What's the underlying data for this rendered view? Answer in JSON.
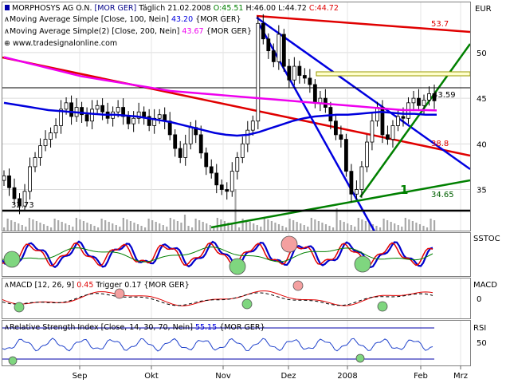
{
  "chart_data": {
    "type": "candlestick",
    "header": {
      "title": "MORPHOSYS AG O.N.",
      "market": "[MOR GER]",
      "interval": "Täglich",
      "date": "21.02.2008",
      "open_label": "O:45.51",
      "high_label": "H:46.00",
      "low_label": "L:44.72",
      "close_label": "C:44.72"
    },
    "legend": {
      "sma1": {
        "label": "Moving Average Simple [Close, 100, Nein]",
        "value": "43.20",
        "suffix": "{MOR GER}",
        "color": "#0000dd"
      },
      "sma2": {
        "label": "Moving Average Simple(2) [Close, 200, Nein]",
        "value": "43.67",
        "suffix": "{MOR GER}",
        "color": "#ee00ee"
      },
      "watermark": "www.tradesignalonline.com"
    },
    "currency": "EUR",
    "y_ticks": [
      "50",
      "45",
      "40",
      "35"
    ],
    "ylim": [
      30.5,
      55.5
    ],
    "x_ticks": [
      "Sep",
      "Okt",
      "Nov",
      "Dez",
      "2008",
      "Feb",
      "Mrz"
    ],
    "annotations": {
      "high_line": "53.7",
      "current": "43.59",
      "support_red": "38.8",
      "support_green": "34.65",
      "low_level": "32.73",
      "wave_label": "1"
    },
    "price_series": [
      {
        "name": "close",
        "values": [
          36.5,
          35.2,
          34.0,
          33.2,
          34.8,
          37.5,
          38.5,
          39.8,
          40.5,
          41.2,
          42.0,
          43.8,
          44.5,
          43.0,
          44.0,
          43.2,
          42.5,
          43.8,
          44.2,
          43.5,
          42.8,
          43.5,
          44.0,
          43.0,
          42.2,
          42.8,
          43.5,
          43.0,
          42.0,
          42.8,
          43.2,
          42.5,
          41.0,
          39.5,
          38.5,
          40.0,
          41.8,
          41.0,
          39.0,
          37.5,
          36.8,
          35.5,
          35.0,
          34.8,
          37.0,
          38.5,
          40.0,
          41.5,
          42.5,
          53.2,
          51.5,
          50.2,
          49.0,
          52.0,
          48.5,
          47.0,
          48.5,
          47.5,
          47.2,
          46.5,
          44.5,
          45.0,
          44.0,
          42.5,
          41.0,
          40.5,
          37.0,
          34.5,
          35.0,
          37.5,
          40.2,
          42.5,
          44.0,
          41.0,
          40.5,
          42.0,
          43.0,
          42.8,
          44.5,
          45.0,
          44.2,
          44.8,
          45.5,
          44.72
        ]
      },
      {
        "name": "Moving Average Simple [Close, 100, Nein]",
        "values": [
          44.5,
          44.3,
          44.1,
          43.9,
          43.7,
          43.6,
          43.5,
          43.4,
          43.3,
          43.2,
          43.2,
          43.1,
          43.0,
          42.8,
          42.6,
          42.4,
          42.1,
          41.8,
          41.5,
          41.2,
          41.0,
          40.9,
          41.0,
          41.3,
          41.7,
          42.1,
          42.5,
          42.8,
          43.0,
          43.1,
          43.2,
          43.2,
          43.3,
          43.4,
          43.5,
          43.4,
          43.3,
          43.3,
          43.2,
          43.2
        ]
      },
      {
        "name": "Moving Average Simple(2) [Close, 200, Nein]",
        "values": [
          49.5,
          49.2,
          48.9,
          48.6,
          48.3,
          48.0,
          47.7,
          47.4,
          47.2,
          47.0,
          46.8,
          46.6,
          46.4,
          46.2,
          46.0,
          45.8,
          45.7,
          45.6,
          45.5,
          45.4,
          45.3,
          45.2,
          45.1,
          45.0,
          44.9,
          44.8,
          44.7,
          44.6,
          44.5,
          44.4,
          44.3,
          44.2,
          44.1,
          44.0,
          43.9,
          43.8,
          43.7,
          43.7,
          43.7,
          43.67
        ]
      }
    ],
    "sstoc": {
      "label": "SSTOC"
    },
    "macd": {
      "label": "MACD",
      "params": "MACD [12, 26, 9]",
      "value": "0.45",
      "trigger_label": "Trigger",
      "trigger_value": "0.17",
      "suffix": "{MOR GER}",
      "ticks": [
        "0"
      ]
    },
    "rsi": {
      "label": "RSI",
      "params": "Relative Strength Index [Close, 14, 30, 70, Nein]",
      "value": "55.15",
      "suffix": "{MOR GER}",
      "ticks": [
        "50"
      ]
    }
  }
}
